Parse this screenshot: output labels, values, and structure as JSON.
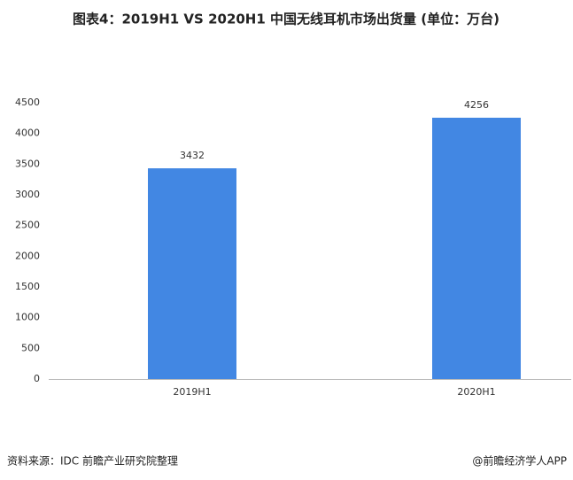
{
  "chart_data": {
    "type": "bar",
    "title": "图表4：2019H1 VS 2020H1 中国无线耳机市场出货量 (单位：万台)",
    "categories": [
      "2019H1",
      "2020H1"
    ],
    "values": [
      3432,
      4256
    ],
    "color": "#4287e3",
    "ylim": [
      0,
      4500
    ],
    "yticks": [
      0,
      500,
      1000,
      1500,
      2000,
      2500,
      3000,
      3500,
      4000,
      4500
    ],
    "grid": false,
    "source": "资料来源：IDC 前瞻产业研究院整理",
    "credit": "@前瞻经济学人APP"
  }
}
